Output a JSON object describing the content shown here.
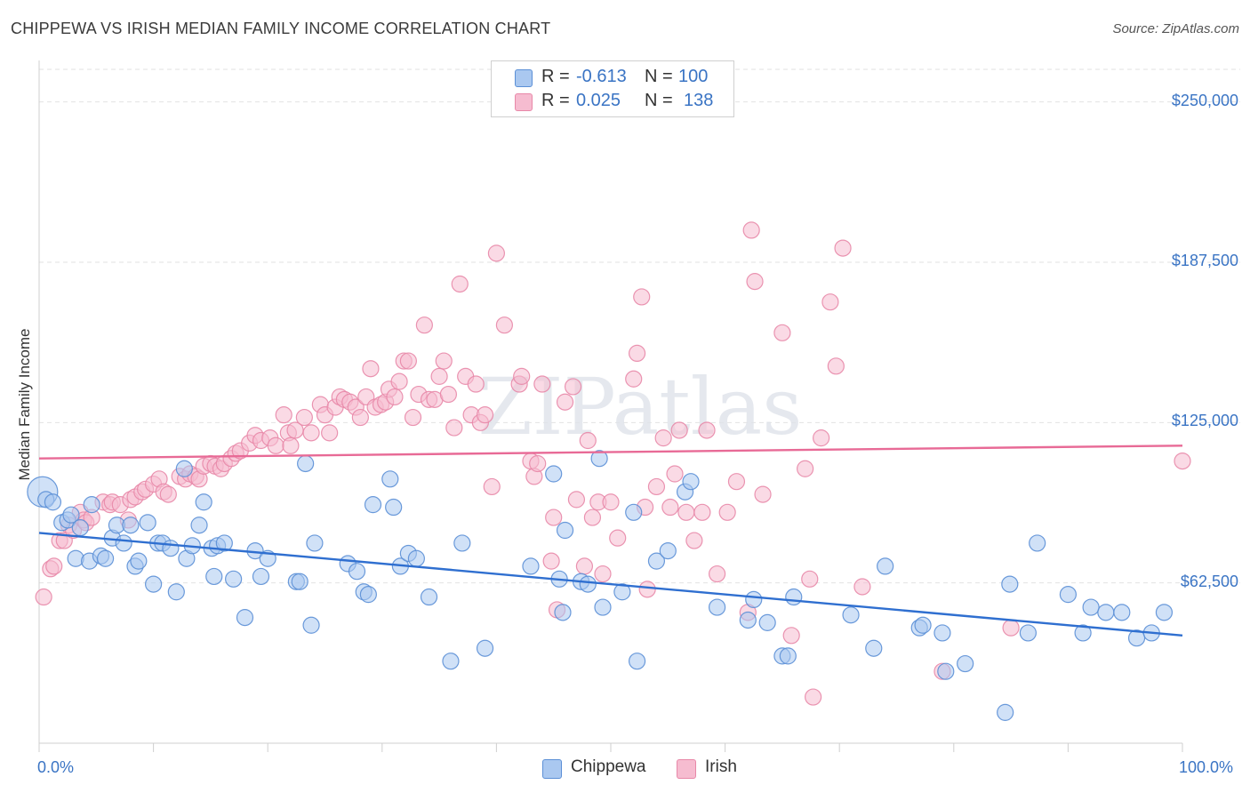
{
  "title": "CHIPPEWA VS IRISH MEDIAN FAMILY INCOME CORRELATION CHART",
  "source": "Source: ZipAtlas.com",
  "watermark": "ZIPatlas",
  "colors": {
    "chippewa_fill": "#aac8f0",
    "chippewa_stroke": "#5b8fd6",
    "chippewa_line": "#2f6fd0",
    "irish_fill": "#f6bcd0",
    "irish_stroke": "#e888a8",
    "irish_line": "#e86a96",
    "axis_label": "#3a74c4"
  },
  "legend": {
    "rows": [
      {
        "r_label": "R =",
        "r_value": "-0.613",
        "n_label": "N =",
        "n_value": "100"
      },
      {
        "r_label": "R =",
        "r_value": "0.025",
        "n_label": "N =",
        "n_value": "138"
      }
    ]
  },
  "chart_data": {
    "type": "scatter",
    "title": "CHIPPEWA VS IRISH MEDIAN FAMILY INCOME CORRELATION CHART",
    "xlabel": "",
    "ylabel": "Median Family Income",
    "xlim": [
      0,
      100
    ],
    "ylim": [
      0,
      262000
    ],
    "x_tick_labels": [
      "0.0%",
      "100.0%"
    ],
    "y_ticks": [
      62500,
      125000,
      187500,
      250000
    ],
    "y_tick_labels": [
      "$62,500",
      "$125,000",
      "$187,500",
      "$250,000"
    ],
    "grid": true,
    "legend_position": "top-center",
    "series": [
      {
        "name": "Chippewa",
        "r": -0.613,
        "n": 100,
        "trend": {
          "x": [
            0,
            100
          ],
          "y": [
            82000,
            42000
          ]
        },
        "points": [
          [
            0.3,
            98000
          ],
          [
            0.6,
            95000
          ],
          [
            1.2,
            94000
          ],
          [
            2.0,
            86000
          ],
          [
            2.5,
            87000
          ],
          [
            2.8,
            89000
          ],
          [
            3.2,
            72000
          ],
          [
            3.6,
            84000
          ],
          [
            4.4,
            71000
          ],
          [
            4.6,
            93000
          ],
          [
            5.4,
            73000
          ],
          [
            5.8,
            72000
          ],
          [
            6.4,
            80000
          ],
          [
            6.8,
            85000
          ],
          [
            7.4,
            78000
          ],
          [
            8.0,
            85000
          ],
          [
            8.4,
            69000
          ],
          [
            8.7,
            71000
          ],
          [
            9.5,
            86000
          ],
          [
            10.0,
            62000
          ],
          [
            10.4,
            78000
          ],
          [
            10.8,
            78000
          ],
          [
            11.5,
            76000
          ],
          [
            12.0,
            59000
          ],
          [
            12.7,
            107000
          ],
          [
            12.9,
            72000
          ],
          [
            13.4,
            77000
          ],
          [
            14.0,
            85000
          ],
          [
            14.4,
            94000
          ],
          [
            15.1,
            76000
          ],
          [
            15.3,
            65000
          ],
          [
            15.6,
            77000
          ],
          [
            16.2,
            78000
          ],
          [
            17.0,
            64000
          ],
          [
            18.0,
            49000
          ],
          [
            18.9,
            75000
          ],
          [
            19.4,
            65000
          ],
          [
            20.0,
            72000
          ],
          [
            22.5,
            63000
          ],
          [
            22.8,
            63000
          ],
          [
            23.3,
            109000
          ],
          [
            23.8,
            46000
          ],
          [
            24.1,
            78000
          ],
          [
            27.0,
            70000
          ],
          [
            27.8,
            67000
          ],
          [
            28.4,
            59000
          ],
          [
            28.8,
            58000
          ],
          [
            29.2,
            93000
          ],
          [
            30.7,
            103000
          ],
          [
            31.0,
            92000
          ],
          [
            31.6,
            69000
          ],
          [
            32.3,
            74000
          ],
          [
            33.0,
            72000
          ],
          [
            34.1,
            57000
          ],
          [
            36.0,
            32000
          ],
          [
            37.0,
            78000
          ],
          [
            39.0,
            37000
          ],
          [
            43.0,
            69000
          ],
          [
            45.0,
            105000
          ],
          [
            45.5,
            64000
          ],
          [
            45.8,
            51000
          ],
          [
            46.0,
            83000
          ],
          [
            47.4,
            63000
          ],
          [
            48.0,
            62000
          ],
          [
            49.0,
            111000
          ],
          [
            49.3,
            53000
          ],
          [
            51.0,
            59000
          ],
          [
            52.0,
            90000
          ],
          [
            52.3,
            32000
          ],
          [
            54.0,
            71000
          ],
          [
            55.0,
            75000
          ],
          [
            56.5,
            98000
          ],
          [
            57.0,
            102000
          ],
          [
            59.3,
            53000
          ],
          [
            62.0,
            48000
          ],
          [
            62.5,
            56000
          ],
          [
            63.7,
            47000
          ],
          [
            65.0,
            34000
          ],
          [
            65.5,
            34000
          ],
          [
            66.0,
            57000
          ],
          [
            71.0,
            50000
          ],
          [
            73.0,
            37000
          ],
          [
            74.0,
            69000
          ],
          [
            77.0,
            45000
          ],
          [
            77.3,
            46000
          ],
          [
            79.0,
            43000
          ],
          [
            79.3,
            28000
          ],
          [
            81.0,
            31000
          ],
          [
            84.5,
            12000
          ],
          [
            84.9,
            62000
          ],
          [
            86.5,
            43000
          ],
          [
            87.3,
            78000
          ],
          [
            90.0,
            58000
          ],
          [
            91.3,
            43000
          ],
          [
            92.0,
            53000
          ],
          [
            93.3,
            51000
          ],
          [
            94.7,
            51000
          ],
          [
            96.0,
            41000
          ],
          [
            97.3,
            43000
          ],
          [
            98.4,
            51000
          ]
        ]
      },
      {
        "name": "Irish",
        "r": 0.025,
        "n": 138,
        "trend": {
          "x": [
            0,
            100
          ],
          "y": [
            111000,
            116000
          ]
        },
        "points": [
          [
            0.4,
            57000
          ],
          [
            1.0,
            68000
          ],
          [
            1.3,
            69000
          ],
          [
            1.8,
            79000
          ],
          [
            2.2,
            79000
          ],
          [
            2.6,
            85000
          ],
          [
            3.0,
            83000
          ],
          [
            3.6,
            90000
          ],
          [
            3.9,
            87000
          ],
          [
            4.1,
            86000
          ],
          [
            4.6,
            88000
          ],
          [
            5.6,
            94000
          ],
          [
            6.2,
            93000
          ],
          [
            6.4,
            94000
          ],
          [
            7.1,
            93000
          ],
          [
            7.8,
            87000
          ],
          [
            8.0,
            95000
          ],
          [
            8.4,
            96000
          ],
          [
            9.0,
            98000
          ],
          [
            9.3,
            99000
          ],
          [
            10.0,
            101000
          ],
          [
            10.5,
            103000
          ],
          [
            10.9,
            98000
          ],
          [
            11.3,
            97000
          ],
          [
            12.3,
            104000
          ],
          [
            12.8,
            103000
          ],
          [
            13.2,
            105000
          ],
          [
            13.7,
            104000
          ],
          [
            14.0,
            103000
          ],
          [
            14.4,
            108000
          ],
          [
            15.0,
            109000
          ],
          [
            15.4,
            108000
          ],
          [
            15.9,
            107000
          ],
          [
            16.2,
            109000
          ],
          [
            16.8,
            111000
          ],
          [
            17.2,
            113000
          ],
          [
            17.6,
            114000
          ],
          [
            18.4,
            117000
          ],
          [
            18.9,
            120000
          ],
          [
            19.4,
            118000
          ],
          [
            20.2,
            119000
          ],
          [
            20.7,
            116000
          ],
          [
            21.4,
            128000
          ],
          [
            21.8,
            121000
          ],
          [
            22.0,
            116000
          ],
          [
            22.4,
            122000
          ],
          [
            23.2,
            127000
          ],
          [
            23.8,
            121000
          ],
          [
            24.6,
            132000
          ],
          [
            25.0,
            128000
          ],
          [
            25.4,
            121000
          ],
          [
            25.9,
            131000
          ],
          [
            26.3,
            135000
          ],
          [
            26.7,
            134000
          ],
          [
            27.2,
            133000
          ],
          [
            27.7,
            131000
          ],
          [
            28.1,
            127000
          ],
          [
            28.6,
            135000
          ],
          [
            29.0,
            146000
          ],
          [
            29.4,
            131000
          ],
          [
            29.9,
            132000
          ],
          [
            30.3,
            133000
          ],
          [
            30.6,
            138000
          ],
          [
            31.1,
            135000
          ],
          [
            31.5,
            141000
          ],
          [
            31.9,
            149000
          ],
          [
            32.3,
            149000
          ],
          [
            32.7,
            127000
          ],
          [
            33.2,
            136000
          ],
          [
            33.7,
            163000
          ],
          [
            34.1,
            134000
          ],
          [
            34.6,
            134000
          ],
          [
            35.0,
            143000
          ],
          [
            35.4,
            149000
          ],
          [
            35.8,
            136000
          ],
          [
            36.3,
            123000
          ],
          [
            36.8,
            179000
          ],
          [
            37.3,
            143000
          ],
          [
            37.8,
            128000
          ],
          [
            38.2,
            140000
          ],
          [
            38.6,
            125000
          ],
          [
            39.0,
            128000
          ],
          [
            39.6,
            100000
          ],
          [
            40.0,
            191000
          ],
          [
            40.7,
            163000
          ],
          [
            42.0,
            140000
          ],
          [
            42.2,
            143000
          ],
          [
            43.0,
            110000
          ],
          [
            43.3,
            104000
          ],
          [
            43.6,
            109000
          ],
          [
            44.0,
            140000
          ],
          [
            44.8,
            71000
          ],
          [
            45.0,
            88000
          ],
          [
            45.3,
            52000
          ],
          [
            46.0,
            133000
          ],
          [
            46.7,
            139000
          ],
          [
            47.0,
            95000
          ],
          [
            47.7,
            69000
          ],
          [
            48.0,
            118000
          ],
          [
            48.4,
            88000
          ],
          [
            48.9,
            94000
          ],
          [
            49.3,
            66000
          ],
          [
            50.0,
            94000
          ],
          [
            50.6,
            80000
          ],
          [
            52.0,
            142000
          ],
          [
            52.3,
            152000
          ],
          [
            52.7,
            174000
          ],
          [
            53.0,
            92000
          ],
          [
            53.2,
            60000
          ],
          [
            54.0,
            100000
          ],
          [
            54.6,
            119000
          ],
          [
            55.2,
            92000
          ],
          [
            55.6,
            105000
          ],
          [
            56.0,
            122000
          ],
          [
            56.6,
            90000
          ],
          [
            57.3,
            79000
          ],
          [
            58.0,
            90000
          ],
          [
            58.4,
            122000
          ],
          [
            59.3,
            66000
          ],
          [
            60.2,
            90000
          ],
          [
            61.0,
            102000
          ],
          [
            62.0,
            51000
          ],
          [
            62.3,
            200000
          ],
          [
            62.6,
            180000
          ],
          [
            63.3,
            97000
          ],
          [
            65.0,
            160000
          ],
          [
            65.8,
            42000
          ],
          [
            67.0,
            107000
          ],
          [
            67.4,
            64000
          ],
          [
            67.7,
            18000
          ],
          [
            68.4,
            119000
          ],
          [
            69.2,
            172000
          ],
          [
            69.7,
            147000
          ],
          [
            70.3,
            193000
          ],
          [
            72.0,
            61000
          ],
          [
            79.0,
            28000
          ],
          [
            85.0,
            45000
          ],
          [
            100.0,
            110000
          ]
        ]
      }
    ]
  }
}
